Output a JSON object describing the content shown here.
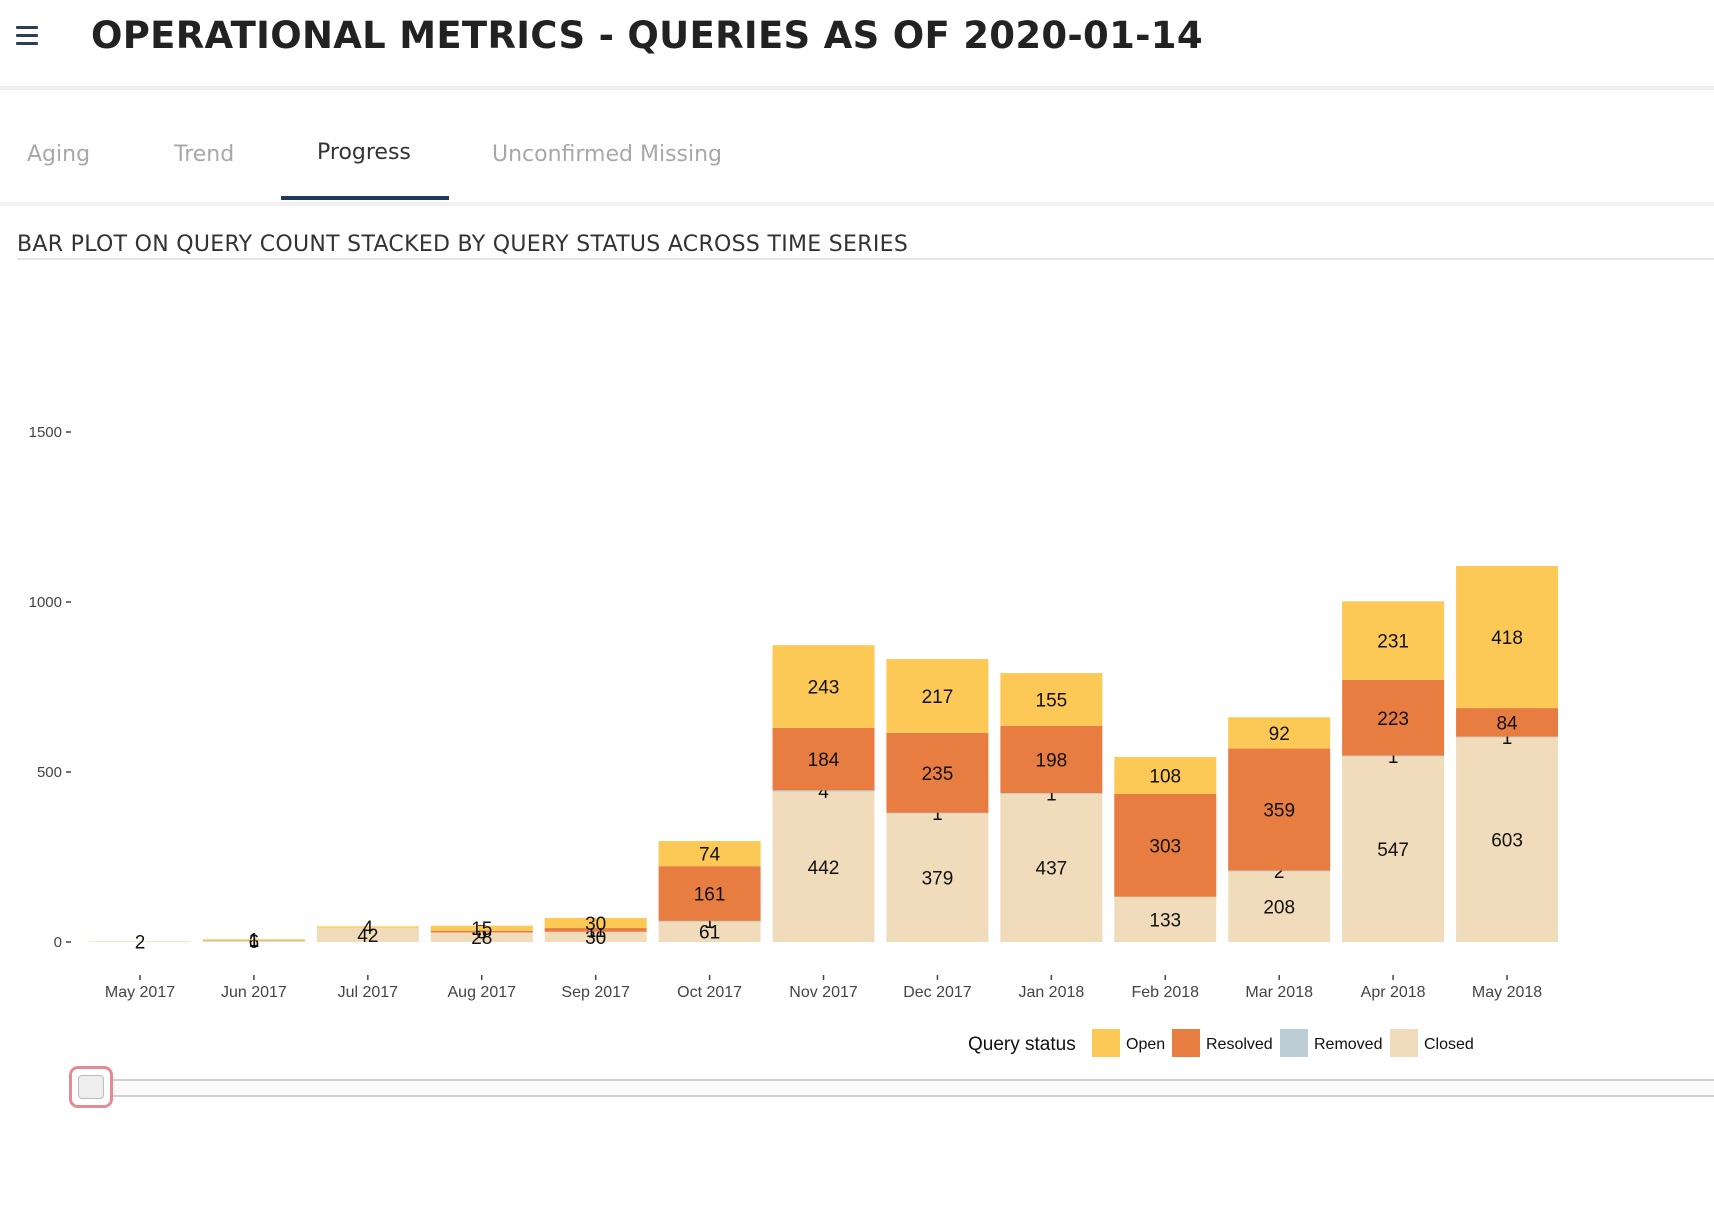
{
  "header": {
    "title": "OPERATIONAL METRICS - QUERIES AS OF 2020-01-14"
  },
  "tabs": [
    {
      "label": "Aging"
    },
    {
      "label": "Trend"
    },
    {
      "label": "Progress"
    },
    {
      "label": "Unconfirmed Missing"
    }
  ],
  "active_tab": "Progress",
  "chart_title": "BAR PLOT ON QUERY COUNT STACKED BY QUERY STATUS ACROSS TIME SERIES",
  "chart_data": {
    "type": "bar",
    "stacked": true,
    "categories": [
      "May 2017",
      "Jun 2017",
      "Jul 2017",
      "Aug 2017",
      "Sep 2017",
      "Oct 2017",
      "Nov 2017",
      "Dec 2017",
      "Jan 2018",
      "Feb 2018",
      "Mar 2018",
      "Apr 2018",
      "May 2018"
    ],
    "series": [
      {
        "name": "Closed",
        "color": "#f0dcbb",
        "values": [
          2,
          6,
          42,
          28,
          30,
          61,
          442,
          379,
          437,
          133,
          208,
          547,
          603
        ]
      },
      {
        "name": "Removed",
        "color": "#bccdd6",
        "values": [
          0,
          0,
          0,
          0,
          0,
          1,
          4,
          1,
          1,
          0,
          2,
          1,
          1
        ]
      },
      {
        "name": "Resolved",
        "color": "#e87d42",
        "values": [
          0,
          1,
          0,
          5,
          11,
          161,
          184,
          235,
          198,
          303,
          359,
          223,
          84
        ]
      },
      {
        "name": "Open",
        "color": "#fcc956",
        "values": [
          0,
          1,
          4,
          15,
          30,
          74,
          243,
          217,
          155,
          108,
          92,
          231,
          418
        ]
      }
    ],
    "title": "BAR PLOT ON QUERY COUNT STACKED BY QUERY STATUS ACROSS TIME SERIES",
    "xlabel": "",
    "ylabel": "",
    "ylim": [
      0,
      1500
    ],
    "yticks": [
      0,
      500,
      1000,
      1500
    ],
    "legend": {
      "title": "Query status",
      "placement": "bottom-right",
      "order": [
        "Open",
        "Resolved",
        "Removed",
        "Closed"
      ]
    }
  }
}
